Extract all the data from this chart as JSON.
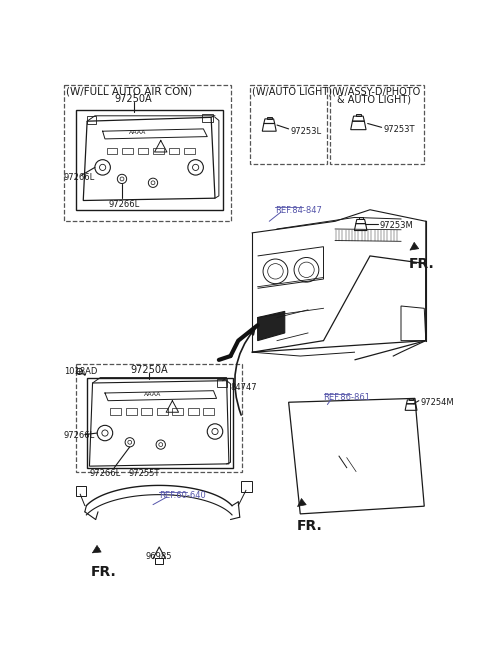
{
  "bg_color": "#ffffff",
  "lc": "#1a1a1a",
  "dc": "#555555",
  "rc": "#5555aa",
  "fw": "bold",
  "parts": {
    "tl_label": "(W/FULL AUTO AIR CON)",
    "tl_part": "97250A",
    "tl_sub1": "97266L",
    "tl_sub2": "97266L",
    "ml_screw": "1018AD",
    "ml_part": "97250A",
    "ml_num": "84747",
    "ml_sub1": "97266L",
    "ml_sub2": "97266L",
    "ml_sub3": "97255T",
    "tr_label1": "(W/AUTO LIGHT)",
    "tr_part1": "97253L",
    "tr_label2": "(W/ASSY-D/PHOTO",
    "tr_label2b": "& AUTO LIGHT)",
    "tr_part2": "97253T",
    "ref1": "REF.84-847",
    "rp": "97253M",
    "ref2": "REF.86-861",
    "brp": "97254M",
    "ref3": "REF.60-640",
    "blp": "96985",
    "fr": "FR."
  },
  "fs_small": 6.0,
  "fs_med": 7.0,
  "fs_large": 9.0,
  "fs_fr": 10.0
}
